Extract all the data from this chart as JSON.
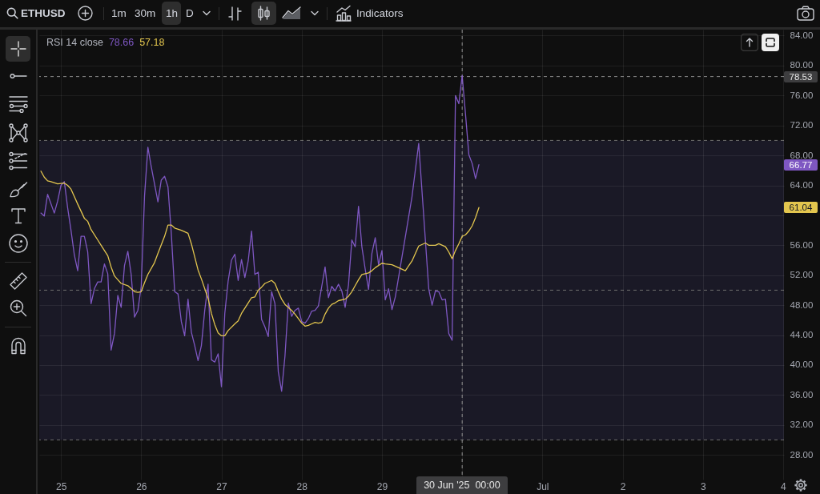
{
  "chart_data": {
    "type": "line",
    "title": "RSI 14 close",
    "subtitle": "ETHUSD",
    "annotations": [
      "1m",
      "30m",
      "1h",
      "D",
      "Indicators",
      "78.66",
      "57.18",
      "66.77",
      "61.04"
    ],
    "xlim": [
      "2025-06-24T17:30",
      "2025-07-04T00:15"
    ],
    "xticks": [
      {
        "value": "2025-06-25T00:00",
        "label": "25"
      },
      {
        "value": "2025-06-26T00:00",
        "label": "26"
      },
      {
        "value": "2025-06-27T00:00",
        "label": "27"
      },
      {
        "value": "2025-06-28T00:00",
        "label": "28"
      },
      {
        "value": "2025-06-29T00:00",
        "label": "29"
      },
      {
        "value": "2025-06-30T00:00",
        "label": null
      },
      {
        "value": "2025-07-01T00:00",
        "label": "Jul"
      },
      {
        "value": "2025-07-02T00:00",
        "label": "2"
      },
      {
        "value": "2025-07-03T00:00",
        "label": "3"
      },
      {
        "value": "2025-07-04T00:00",
        "label": "4"
      }
    ],
    "ylim": [
      24.7,
      84.8
    ],
    "yticks": [
      {
        "value": 28,
        "label": "28.00"
      },
      {
        "value": 32,
        "label": "32.00"
      },
      {
        "value": 36,
        "label": "36.00"
      },
      {
        "value": 40,
        "label": "40.00"
      },
      {
        "value": 44,
        "label": "44.00"
      },
      {
        "value": 48,
        "label": "48.00"
      },
      {
        "value": 52,
        "label": "52.00"
      },
      {
        "value": 56,
        "label": "56.00"
      },
      {
        "value": 60,
        "label": null
      },
      {
        "value": 64,
        "label": "64.00"
      },
      {
        "value": 68,
        "label": "68.00"
      },
      {
        "value": 72,
        "label": "72.00"
      },
      {
        "value": 76,
        "label": "76.00"
      },
      {
        "value": 80,
        "label": "80.00"
      },
      {
        "value": 84,
        "label": "84.00"
      }
    ],
    "grid": true,
    "bands": [
      {
        "axis": "y",
        "from": 30,
        "to": 70,
        "color": "#1a1926"
      }
    ],
    "ref_lines": [
      {
        "axis": "y",
        "value": 70,
        "color": "#6e6e6e",
        "line_style": "dashed"
      },
      {
        "axis": "y",
        "value": 50,
        "color": "#6e6e6e",
        "line_style": "dashed"
      },
      {
        "axis": "y",
        "value": 30,
        "color": "#6e6e6e",
        "line_style": "dashed"
      },
      {
        "axis": "y",
        "value": 78.53,
        "label": "78.53",
        "color": "#8c8c8c",
        "line_style": "dashed"
      },
      {
        "axis": "x",
        "value": "2025-06-30T00:00",
        "label": "30 Jun '25  00:00",
        "color": "#8c8c8c",
        "line_style": "dashed"
      }
    ],
    "series": [
      {
        "color": "#7e57c2",
        "x": [
          "2025-06-24T18:00",
          "2025-06-24T19:00",
          "2025-06-24T20:00",
          "2025-06-24T22:00",
          "2025-06-24T23:00",
          "2025-06-25T00:00",
          "2025-06-25T01:00",
          "2025-06-25T02:00",
          "2025-06-25T03:00",
          "2025-06-25T04:00",
          "2025-06-25T05:00",
          "2025-06-25T06:00",
          "2025-06-25T07:00",
          "2025-06-25T08:00",
          "2025-06-25T09:00",
          "2025-06-25T10:00",
          "2025-06-25T11:00",
          "2025-06-25T12:00",
          "2025-06-25T13:00",
          "2025-06-25T14:00",
          "2025-06-25T15:00",
          "2025-06-25T16:00",
          "2025-06-25T17:00",
          "2025-06-25T18:00",
          "2025-06-25T19:00",
          "2025-06-25T20:00",
          "2025-06-25T21:00",
          "2025-06-25T22:00",
          "2025-06-25T23:00",
          "2025-06-26T00:00",
          "2025-06-26T01:00",
          "2025-06-26T02:00",
          "2025-06-26T03:00",
          "2025-06-26T05:00",
          "2025-06-26T06:00",
          "2025-06-26T07:00",
          "2025-06-26T08:00",
          "2025-06-26T09:00",
          "2025-06-26T10:00",
          "2025-06-26T11:00",
          "2025-06-26T12:00",
          "2025-06-26T13:00",
          "2025-06-26T14:00",
          "2025-06-26T15:00",
          "2025-06-26T16:00",
          "2025-06-26T17:00",
          "2025-06-26T18:00",
          "2025-06-26T19:00",
          "2025-06-26T20:00",
          "2025-06-26T21:00",
          "2025-06-26T22:00",
          "2025-06-26T23:00",
          "2025-06-27T00:00",
          "2025-06-27T01:00",
          "2025-06-27T02:00",
          "2025-06-27T03:00",
          "2025-06-27T04:00",
          "2025-06-27T05:00",
          "2025-06-27T06:00",
          "2025-06-27T07:00",
          "2025-06-27T08:00",
          "2025-06-27T09:00",
          "2025-06-27T10:00",
          "2025-06-27T11:00",
          "2025-06-27T12:00",
          "2025-06-27T13:00",
          "2025-06-27T14:00",
          "2025-06-27T15:00",
          "2025-06-27T16:00",
          "2025-06-27T17:00",
          "2025-06-27T18:00",
          "2025-06-27T19:00",
          "2025-06-27T20:00",
          "2025-06-27T21:00",
          "2025-06-27T22:00",
          "2025-06-27T23:00",
          "2025-06-28T00:00",
          "2025-06-28T01:00",
          "2025-06-28T02:00",
          "2025-06-28T03:00",
          "2025-06-28T04:00",
          "2025-06-28T05:00",
          "2025-06-28T06:00",
          "2025-06-28T07:00",
          "2025-06-28T08:00",
          "2025-06-28T09:00",
          "2025-06-28T10:00",
          "2025-06-28T11:00",
          "2025-06-28T12:00",
          "2025-06-28T13:00",
          "2025-06-28T14:00",
          "2025-06-28T15:00",
          "2025-06-28T16:00",
          "2025-06-28T17:00",
          "2025-06-28T18:00",
          "2025-06-28T19:00",
          "2025-06-28T20:00",
          "2025-06-28T21:00",
          "2025-06-28T22:00",
          "2025-06-28T23:00",
          "2025-06-29T00:00",
          "2025-06-29T01:00",
          "2025-06-29T02:00",
          "2025-06-29T03:00",
          "2025-06-29T04:00",
          "2025-06-29T09:00",
          "2025-06-29T11:00",
          "2025-06-29T14:00",
          "2025-06-29T15:00",
          "2025-06-29T16:00",
          "2025-06-29T17:00",
          "2025-06-29T18:00",
          "2025-06-29T19:00",
          "2025-06-29T20:00",
          "2025-06-29T21:00",
          "2025-06-29T22:00",
          "2025-06-29T23:00",
          "2025-06-30T00:00",
          "2025-06-30T01:00",
          "2025-06-30T02:00",
          "2025-06-30T03:00",
          "2025-06-30T04:00",
          "2025-06-30T05:00"
        ],
        "values": [
          60.3,
          59.9,
          62.8,
          60.3,
          61.9,
          64.0,
          64.5,
          61.0,
          58.0,
          54.7,
          52.6,
          57.2,
          57.2,
          55.1,
          48.2,
          50.2,
          51.1,
          51.1,
          53.5,
          52.2,
          42.0,
          44.2,
          49.3,
          47.7,
          53.3,
          55.2,
          52.1,
          46.4,
          47.3,
          50.5,
          62.6,
          69.1,
          66.5,
          61.8,
          64.7,
          65.2,
          63.8,
          57.6,
          49.8,
          49.5,
          45.8,
          43.9,
          48.8,
          44.4,
          42.6,
          40.6,
          42.6,
          47.3,
          50.8,
          40.7,
          40.4,
          41.5,
          37.1,
          46.9,
          51.2,
          54.0,
          54.8,
          51.3,
          54.1,
          51.7,
          53.9,
          57.9,
          52.1,
          52.4,
          46.1,
          45.1,
          43.8,
          49.8,
          48.2,
          39.1,
          36.5,
          41.2,
          48.3,
          46.5,
          47.3,
          47.6,
          45.8,
          45.6,
          46.2,
          47.2,
          47.3,
          47.9,
          50.5,
          53.1,
          49.0,
          50.5,
          49.9,
          50.8,
          49.9,
          47.7,
          50.7,
          56.7,
          55.8,
          61.2,
          55.8,
          52.8,
          50.1,
          54.9,
          57.0,
          53.4,
          55.3,
          48.7,
          50.2,
          47.4,
          49.1,
          62.5,
          69.6,
          50.2,
          48.0,
          49.9,
          49.8,
          48.7,
          48.8,
          44.2,
          43.3,
          76.0,
          74.9,
          78.66,
          73.5,
          68.1,
          66.9,
          64.9,
          66.77
        ]
      },
      {
        "color": "#e3c64e",
        "x": [
          "2025-06-24T18:00",
          "2025-06-24T19:00",
          "2025-06-24T20:00",
          "2025-06-24T21:00",
          "2025-06-24T23:00",
          "2025-06-25T01:00",
          "2025-06-25T02:00",
          "2025-06-25T03:00",
          "2025-06-25T04:00",
          "2025-06-25T05:00",
          "2025-06-25T07:00",
          "2025-06-25T08:00",
          "2025-06-25T09:00",
          "2025-06-25T11:00",
          "2025-06-25T12:00",
          "2025-06-25T14:00",
          "2025-06-25T15:00",
          "2025-06-25T16:00",
          "2025-06-25T17:00",
          "2025-06-25T18:00",
          "2025-06-25T20:00",
          "2025-06-25T21:00",
          "2025-06-25T22:00",
          "2025-06-25T23:00",
          "2025-06-26T00:00",
          "2025-06-26T01:00",
          "2025-06-26T02:00",
          "2025-06-26T04:00",
          "2025-06-26T05:00",
          "2025-06-26T07:00",
          "2025-06-26T08:00",
          "2025-06-26T09:00",
          "2025-06-26T10:00",
          "2025-06-26T12:00",
          "2025-06-26T14:00",
          "2025-06-26T15:00",
          "2025-06-26T17:00",
          "2025-06-26T18:00",
          "2025-06-26T20:00",
          "2025-06-26T21:00",
          "2025-06-26T22:00",
          "2025-06-26T23:00",
          "2025-06-27T00:00",
          "2025-06-27T01:00",
          "2025-06-27T02:00",
          "2025-06-27T04:00",
          "2025-06-27T05:00",
          "2025-06-27T06:00",
          "2025-06-27T08:00",
          "2025-06-27T09:00",
          "2025-06-27T10:00",
          "2025-06-27T11:00",
          "2025-06-27T12:00",
          "2025-06-27T13:00",
          "2025-06-27T15:00",
          "2025-06-27T16:00",
          "2025-06-27T17:00",
          "2025-06-27T18:00",
          "2025-06-27T19:00",
          "2025-06-27T21:00",
          "2025-06-27T22:00",
          "2025-06-27T23:00",
          "2025-06-28T00:00",
          "2025-06-28T01:00",
          "2025-06-28T02:00",
          "2025-06-28T03:00",
          "2025-06-28T04:00",
          "2025-06-28T05:00",
          "2025-06-28T06:00",
          "2025-06-28T07:00",
          "2025-06-28T08:00",
          "2025-06-28T09:00",
          "2025-06-28T10:00",
          "2025-06-28T11:00",
          "2025-06-28T13:00",
          "2025-06-28T14:00",
          "2025-06-28T15:00",
          "2025-06-28T16:00",
          "2025-06-28T17:00",
          "2025-06-28T18:00",
          "2025-06-28T20:00",
          "2025-06-28T21:00",
          "2025-06-28T22:00",
          "2025-06-29T00:00",
          "2025-06-29T01:00",
          "2025-06-29T03:00",
          "2025-06-29T05:00",
          "2025-06-29T07:00",
          "2025-06-29T09:00",
          "2025-06-29T11:00",
          "2025-06-29T13:00",
          "2025-06-29T14:00",
          "2025-06-29T16:00",
          "2025-06-29T17:00",
          "2025-06-29T19:00",
          "2025-06-29T20:00",
          "2025-06-29T21:00",
          "2025-06-29T22:00",
          "2025-06-29T23:00",
          "2025-06-30T00:00",
          "2025-06-30T01:00",
          "2025-06-30T02:00",
          "2025-06-30T03:00",
          "2025-06-30T04:00",
          "2025-06-30T05:00"
        ],
        "values": [
          65.9,
          65.1,
          64.6,
          64.5,
          64.2,
          64.3,
          64.0,
          63.5,
          62.5,
          61.5,
          59.6,
          59.2,
          58.1,
          56.7,
          56.0,
          54.6,
          53.1,
          51.9,
          51.4,
          50.9,
          50.6,
          50.2,
          49.8,
          49.7,
          49.8,
          51.0,
          52.1,
          53.7,
          54.9,
          57.2,
          58.7,
          58.7,
          58.3,
          58.0,
          57.6,
          56.2,
          52.7,
          51.5,
          48.9,
          46.9,
          45.4,
          44.3,
          43.9,
          43.9,
          44.6,
          45.5,
          45.9,
          46.9,
          48.3,
          49.0,
          49.1,
          50.0,
          50.4,
          50.9,
          51.3,
          50.9,
          49.8,
          48.8,
          48.1,
          47.3,
          46.8,
          46.2,
          45.6,
          45.2,
          45.3,
          45.5,
          45.7,
          45.6,
          45.7,
          46.8,
          47.6,
          48.1,
          48.3,
          48.6,
          48.8,
          49.2,
          49.8,
          50.6,
          51.4,
          52.1,
          52.3,
          52.6,
          53.0,
          53.6,
          53.5,
          53.4,
          53.0,
          52.6,
          53.9,
          55.9,
          56.3,
          56.0,
          56.0,
          56.2,
          55.8,
          55.1,
          54.2,
          55.3,
          56.2,
          57.18,
          57.4,
          57.9,
          58.6,
          59.7,
          61.04
        ]
      }
    ]
  }
}
